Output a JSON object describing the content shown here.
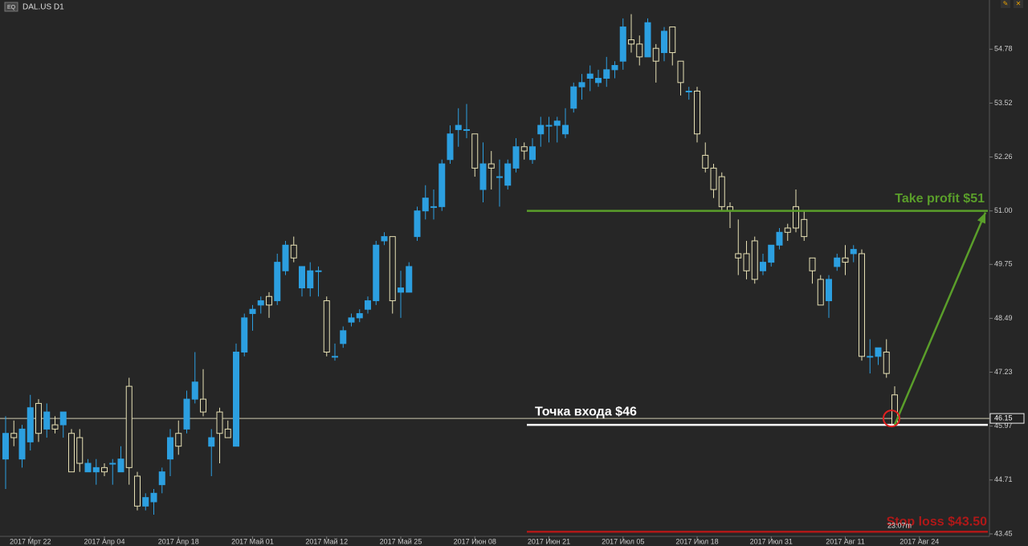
{
  "chart_data": {
    "type": "candlestick",
    "title": "DAL.US D1",
    "badge": "EQ",
    "categories": [
      null,
      null,
      null,
      "2017 Мрт 22",
      null,
      null,
      null,
      null,
      null,
      null,
      null,
      null,
      "2017 Апр 04",
      null,
      null,
      null,
      null,
      null,
      null,
      null,
      null,
      "2017 Апр 18",
      null,
      null,
      null,
      null,
      null,
      null,
      null,
      null,
      "2017 Май 01",
      null,
      null,
      null,
      null,
      null,
      null,
      null,
      null,
      "2017 Май 12",
      null,
      null,
      null,
      null,
      null,
      null,
      null,
      null,
      "2017 Май 25",
      null,
      null,
      null,
      null,
      null,
      null,
      null,
      null,
      "2017 Июн 08",
      null,
      null,
      null,
      null,
      null,
      null,
      null,
      null,
      "2017 Июн 21",
      null,
      null,
      null,
      null,
      null,
      null,
      null,
      null,
      "2017 Июл 05",
      null,
      null,
      null,
      null,
      null,
      null,
      null,
      null,
      "2017 Июл 18",
      null,
      null,
      null,
      null,
      null,
      null,
      null,
      null,
      "2017 Июл 31",
      null,
      null,
      null,
      null,
      null,
      null,
      null,
      null,
      "2017 Авг 11",
      null,
      null,
      null,
      null,
      null,
      null,
      null,
      null,
      "2017 Авг 24"
    ],
    "open": [
      45.2,
      45.8,
      45.2,
      45.6,
      46.5,
      45.9,
      46.0,
      46.0,
      45.8,
      45.7,
      44.9,
      44.9,
      45.0,
      45.1,
      44.9,
      46.9,
      44.8,
      44.1,
      44.2,
      44.6,
      45.2,
      45.8,
      45.9,
      46.6,
      46.6,
      45.5,
      46.3,
      45.9,
      45.5,
      47.7,
      48.6,
      48.8,
      49.0,
      48.9,
      49.6,
      50.2,
      49.2,
      49.2,
      49.6,
      48.9,
      47.6,
      47.9,
      48.4,
      48.5,
      48.7,
      48.9,
      50.3,
      50.4,
      49.1,
      49.1,
      50.4,
      51.0,
      51.1,
      51.1,
      52.2,
      52.9,
      52.9,
      52.8,
      51.5,
      52.1,
      51.8,
      51.6,
      52.0,
      52.5,
      52.2,
      52.8,
      53.0,
      53.0,
      52.8,
      53.4,
      53.9,
      54.1,
      54.0,
      54.1,
      54.3,
      54.5,
      55.0,
      54.9,
      54.6,
      54.8,
      54.7,
      55.3,
      54.5,
      53.8,
      53.8,
      52.3,
      52.0,
      51.8,
      51.1,
      50.0,
      50.0,
      50.3,
      49.6,
      49.8,
      50.2,
      50.6,
      51.1,
      50.8,
      49.9,
      49.4,
      48.9,
      49.7,
      49.9,
      50.0,
      50.0,
      47.6,
      47.6,
      47.7,
      46.7,
      null,
      null,
      null
    ],
    "high": [
      46.2,
      46.1,
      46.0,
      46.7,
      46.6,
      46.5,
      46.2,
      46.3,
      45.9,
      45.9,
      45.2,
      45.2,
      45.1,
      45.2,
      45.5,
      47.1,
      44.9,
      44.4,
      44.5,
      45.0,
      45.9,
      46.1,
      46.8,
      47.7,
      47.3,
      45.9,
      46.4,
      46.1,
      47.9,
      48.6,
      48.8,
      49.0,
      49.1,
      50.0,
      50.3,
      50.4,
      49.7,
      49.8,
      49.7,
      49.0,
      47.9,
      48.3,
      48.6,
      48.7,
      49.0,
      50.3,
      50.5,
      50.4,
      49.6,
      49.8,
      51.1,
      51.6,
      51.5,
      52.2,
      53.0,
      53.4,
      53.5,
      52.8,
      52.6,
      52.4,
      52.2,
      52.2,
      52.7,
      52.6,
      52.7,
      53.2,
      53.2,
      53.2,
      53.4,
      54.0,
      54.2,
      54.4,
      54.3,
      54.6,
      54.5,
      55.5,
      55.6,
      55.1,
      55.5,
      54.9,
      55.3,
      55.3,
      54.5,
      53.9,
      53.9,
      52.6,
      52.1,
      51.9,
      51.2,
      50.8,
      50.3,
      50.4,
      50.0,
      50.2,
      50.6,
      50.7,
      51.5,
      51.0,
      49.9,
      49.5,
      49.5,
      50.0,
      50.2,
      50.2,
      50.1,
      48.0,
      47.8,
      48.0,
      46.9,
      null,
      null,
      null
    ],
    "low": [
      44.5,
      45.5,
      45.0,
      45.4,
      45.6,
      45.7,
      45.8,
      45.7,
      44.9,
      44.9,
      44.9,
      44.6,
      44.8,
      44.6,
      44.9,
      44.6,
      44.0,
      44.0,
      43.9,
      44.4,
      44.8,
      45.3,
      45.8,
      46.5,
      46.2,
      44.8,
      45.1,
      45.7,
      45.5,
      47.6,
      48.2,
      48.6,
      48.5,
      48.8,
      49.5,
      49.8,
      49.0,
      49.0,
      49.0,
      47.6,
      47.5,
      47.8,
      48.3,
      48.4,
      48.6,
      48.8,
      50.2,
      48.6,
      48.5,
      49.1,
      50.3,
      50.8,
      50.8,
      51.0,
      52.1,
      52.5,
      52.7,
      51.8,
      51.2,
      51.5,
      51.1,
      51.5,
      51.9,
      52.2,
      52.1,
      52.5,
      52.6,
      52.6,
      52.7,
      53.3,
      53.6,
      53.8,
      53.9,
      53.9,
      54.1,
      54.3,
      54.7,
      54.4,
      54.6,
      54.0,
      54.5,
      54.4,
      53.7,
      53.6,
      52.6,
      51.9,
      51.3,
      51.0,
      50.6,
      49.5,
      49.4,
      49.3,
      49.5,
      49.7,
      50.1,
      50.3,
      50.5,
      50.3,
      49.3,
      48.8,
      48.5,
      49.6,
      49.5,
      49.8,
      47.5,
      47.2,
      47.4,
      47.1,
      46.0,
      null,
      null,
      null
    ],
    "close": [
      45.8,
      45.7,
      45.9,
      46.4,
      45.8,
      46.3,
      45.9,
      46.3,
      44.9,
      45.1,
      45.1,
      45.0,
      44.9,
      45.1,
      45.2,
      45.0,
      44.1,
      44.3,
      44.4,
      44.9,
      45.7,
      45.5,
      46.6,
      47.0,
      46.3,
      45.7,
      45.8,
      45.7,
      47.7,
      48.5,
      48.7,
      48.9,
      48.8,
      49.8,
      50.2,
      49.9,
      49.7,
      49.6,
      49.6,
      47.7,
      47.6,
      48.2,
      48.5,
      48.6,
      48.9,
      50.2,
      50.4,
      48.9,
      49.2,
      49.7,
      51.0,
      51.3,
      51.1,
      52.1,
      52.8,
      53.0,
      52.9,
      52.0,
      52.1,
      52.0,
      51.8,
      52.1,
      52.5,
      52.4,
      52.5,
      53.0,
      53.0,
      53.1,
      53.0,
      53.9,
      54.0,
      54.2,
      54.1,
      54.3,
      54.4,
      55.3,
      54.9,
      54.6,
      55.4,
      54.5,
      55.2,
      54.7,
      54.0,
      53.8,
      52.8,
      52.0,
      51.5,
      51.1,
      51.0,
      49.9,
      49.6,
      49.4,
      49.8,
      50.2,
      50.5,
      50.5,
      50.6,
      50.4,
      49.6,
      48.8,
      49.4,
      49.9,
      49.8,
      50.1,
      47.6,
      47.6,
      47.8,
      47.2,
      46.0,
      null,
      null,
      null
    ],
    "up_color": "#2c9fe0",
    "down_color": "#e6e0b4",
    "ylim": [
      43.43,
      55.93
    ],
    "yticks": [
      43.45,
      44.71,
      45.97,
      47.23,
      48.49,
      49.75,
      {
        "value": 51,
        "label": "51.00"
      },
      52.26,
      53.52,
      54.78
    ],
    "current_price": 46.15,
    "levels": [
      {
        "label": "Take profit $51",
        "value": 51,
        "color": "#5a9e2a"
      },
      {
        "label": "Точка входа $46",
        "value": 46,
        "color": "#ffffff"
      },
      {
        "label": "Stop loss $43.50",
        "value": 43.5,
        "color": "#b01818"
      }
    ],
    "timer": "23:07m"
  }
}
